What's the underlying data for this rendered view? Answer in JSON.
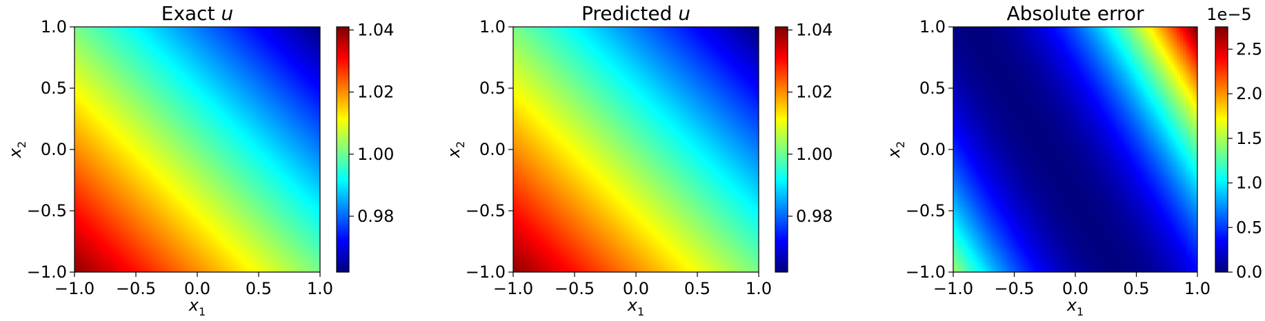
{
  "colormap": "jet",
  "jet_stops": [
    "#00007f",
    "#0000ff",
    "#007fff",
    "#00ffff",
    "#7fff7f",
    "#ffff00",
    "#ff7f00",
    "#ff0000",
    "#7f0000"
  ],
  "chart_data": [
    {
      "type": "heatmap",
      "title": "Exact",
      "title_var": "u",
      "xlabel": "x",
      "xlabel_sub": "1",
      "ylabel": "x",
      "ylabel_sub": "2",
      "xlim": [
        -1.0,
        1.0
      ],
      "ylim": [
        -1.0,
        1.0
      ],
      "xticks": [
        "−1.0",
        "−0.5",
        "0.0",
        "0.5",
        "1.0"
      ],
      "yticks": [
        "−1.0",
        "−0.5",
        "0.0",
        "0.5",
        "1.0"
      ],
      "field": {
        "kind": "linear",
        "value_at_lower_left": 1.04,
        "value_at_upper_right": 0.962,
        "value_at_center": 1.001
      },
      "colorbar": {
        "vmin": 0.962,
        "vmax": 1.041,
        "ticks": [
          0.98,
          1.0,
          1.02,
          1.04
        ],
        "tick_labels": [
          "0.98",
          "1.00",
          "1.02",
          "1.04"
        ],
        "offset_text": ""
      }
    },
    {
      "type": "heatmap",
      "title": "Predicted",
      "title_var": "u",
      "xlabel": "x",
      "xlabel_sub": "1",
      "ylabel": "x",
      "ylabel_sub": "2",
      "xlim": [
        -1.0,
        1.0
      ],
      "ylim": [
        -1.0,
        1.0
      ],
      "xticks": [
        "−1.0",
        "−0.5",
        "0.0",
        "0.5",
        "1.0"
      ],
      "yticks": [
        "−1.0",
        "−0.5",
        "0.0",
        "0.5",
        "1.0"
      ],
      "field": {
        "kind": "linear",
        "value_at_lower_left": 1.04,
        "value_at_upper_right": 0.962,
        "value_at_center": 1.001
      },
      "colorbar": {
        "vmin": 0.962,
        "vmax": 1.041,
        "ticks": [
          0.98,
          1.0,
          1.02,
          1.04
        ],
        "tick_labels": [
          "0.98",
          "1.00",
          "1.02",
          "1.04"
        ],
        "offset_text": ""
      }
    },
    {
      "type": "heatmap",
      "title": "Absolute error",
      "title_var": "",
      "xlabel": "x",
      "xlabel_sub": "1",
      "ylabel": "x",
      "ylabel_sub": "2",
      "xlim": [
        -1.0,
        1.0
      ],
      "ylim": [
        -1.0,
        1.0
      ],
      "xticks": [
        "−1.0",
        "−0.5",
        "0.0",
        "0.5",
        "1.0"
      ],
      "yticks": [
        "−1.0",
        "−0.5",
        "0.0",
        "0.5",
        "1.0"
      ],
      "field": {
        "kind": "quadratic_band",
        "zero_line_intercept": -0.25,
        "zero_line_slope": -0.6,
        "max_value": 2.75e-05
      },
      "colorbar": {
        "vmin": 0.0,
        "vmax": 2.75e-05,
        "ticks": [
          0.0,
          5e-06,
          1e-05,
          1.5e-05,
          2e-05,
          2.5e-05
        ],
        "tick_labels": [
          "0.0",
          "0.5",
          "1.0",
          "1.5",
          "2.0",
          "2.5"
        ],
        "offset_text": "1e−5"
      }
    }
  ]
}
